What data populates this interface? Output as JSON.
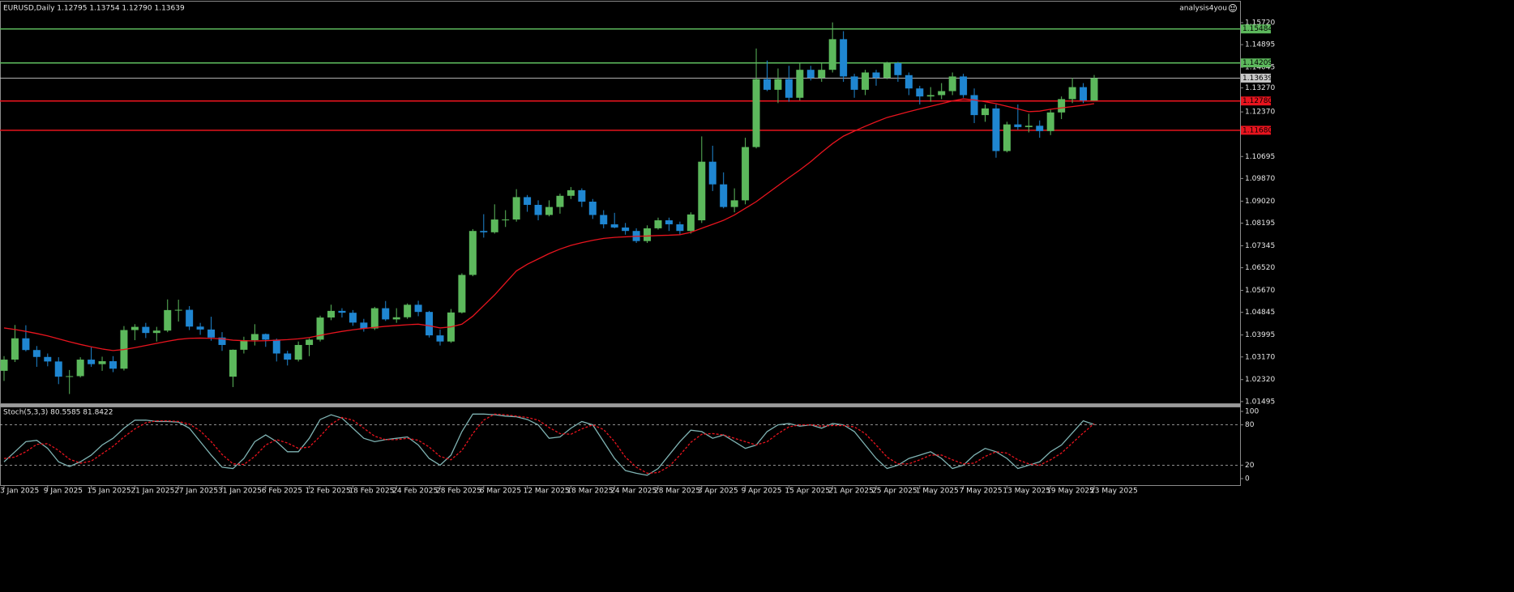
{
  "chart_data": {
    "type": "candlestick",
    "title": "EURUSD,Daily  1.12795 1.13754 1.12790 1.13639",
    "brand": "analysis4you",
    "categories": [
      "3 Jan 2025",
      null,
      null,
      null,
      "9 Jan 2025",
      null,
      null,
      null,
      "15 Jan 2025",
      null,
      null,
      null,
      "21 Jan 2025",
      null,
      null,
      null,
      "27 Jan 2025",
      null,
      null,
      null,
      "31 Jan 2025",
      null,
      null,
      null,
      "6 Feb 2025",
      null,
      null,
      null,
      "12 Feb 2025",
      null,
      null,
      null,
      "18 Feb 2025",
      null,
      null,
      null,
      "24 Feb 2025",
      null,
      null,
      null,
      "28 Feb 2025",
      null,
      null,
      null,
      "6 Mar 2025",
      null,
      null,
      null,
      "12 Mar 2025",
      null,
      null,
      null,
      "18 Mar 2025",
      null,
      null,
      null,
      "24 Mar 2025",
      null,
      null,
      null,
      "28 Mar 2025",
      null,
      null,
      null,
      "3 Apr 2025",
      null,
      null,
      null,
      "9 Apr 2025",
      null,
      null,
      null,
      "15 Apr 2025",
      null,
      null,
      null,
      "21 Apr 2025",
      null,
      null,
      null,
      "25 Apr 2025",
      null,
      null,
      null,
      "1 May 2025",
      null,
      null,
      null,
      "7 May 2025",
      null,
      null,
      null,
      "13 May 2025",
      null,
      null,
      null,
      "19 May 2025",
      null,
      null,
      null,
      "23 May 2025"
    ],
    "open": [
      1.0265,
      1.0307,
      1.0387,
      1.0343,
      1.0317,
      1.03,
      1.0243,
      1.0245,
      1.0307,
      1.029,
      1.0301,
      1.0273,
      1.0418,
      1.043,
      1.0407,
      1.0416,
      1.0493,
      1.0494,
      1.0431,
      1.042,
      1.039,
      1.0243,
      1.0344,
      1.038,
      1.0403,
      1.0382,
      1.033,
      1.0307,
      1.0362,
      1.0382,
      1.0465,
      1.049,
      1.0483,
      1.0446,
      1.0424,
      1.05,
      1.0458,
      1.0466,
      1.0513,
      1.0486,
      1.0398,
      1.0375,
      1.0484,
      1.0625,
      1.079,
      1.0785,
      1.0833,
      1.0833,
      1.0917,
      1.0888,
      1.085,
      1.088,
      1.0922,
      1.0943,
      1.09,
      1.085,
      1.0815,
      1.0803,
      1.079,
      1.0752,
      1.08,
      1.083,
      1.0815,
      1.079,
      1.083,
      1.105,
      1.0965,
      1.088,
      1.0905,
      1.1105,
      1.136,
      1.132,
      1.136,
      1.129,
      1.1395,
      1.1365,
      1.1395,
      1.151,
      1.137,
      1.132,
      1.1385,
      1.1365,
      1.142,
      1.1375,
      1.1325,
      1.1295,
      1.13,
      1.1315,
      1.137,
      1.13,
      1.1225,
      1.125,
      1.109,
      1.119,
      1.118,
      1.1185,
      1.1165,
      1.1235,
      1.1285,
      1.133,
      1.12795
    ],
    "high": [
      1.032,
      1.0437,
      1.0436,
      1.0358,
      1.033,
      1.0316,
      1.0268,
      1.0316,
      1.0353,
      1.0318,
      1.032,
      1.0433,
      1.044,
      1.0445,
      1.043,
      1.0533,
      1.0532,
      1.0508,
      1.0445,
      1.0468,
      1.041,
      1.0345,
      1.0393,
      1.044,
      1.0405,
      1.0386,
      1.034,
      1.0375,
      1.0387,
      1.0472,
      1.0513,
      1.05,
      1.0493,
      1.046,
      1.0505,
      1.0527,
      1.05,
      1.0518,
      1.0528,
      1.049,
      1.042,
      1.0497,
      1.0631,
      1.0797,
      1.0853,
      1.089,
      1.0868,
      1.0947,
      1.0925,
      1.0905,
      1.0905,
      1.093,
      1.0955,
      1.095,
      1.091,
      1.0868,
      1.0858,
      1.082,
      1.08,
      1.0811,
      1.084,
      1.084,
      1.0825,
      1.086,
      1.1145,
      1.111,
      1.101,
      1.095,
      1.114,
      1.1475,
      1.143,
      1.14,
      1.141,
      1.142,
      1.141,
      1.142,
      1.1573,
      1.154,
      1.138,
      1.1395,
      1.1395,
      1.1425,
      1.1425,
      1.1385,
      1.1335,
      1.133,
      1.1345,
      1.1385,
      1.138,
      1.1325,
      1.1265,
      1.1265,
      1.12,
      1.1265,
      1.123,
      1.1205,
      1.1245,
      1.1295,
      1.1365,
      1.1345,
      1.13754
    ],
    "low": [
      1.0227,
      1.0298,
      1.0338,
      1.028,
      1.0282,
      1.0215,
      1.0178,
      1.024,
      1.028,
      1.0265,
      1.026,
      1.0266,
      1.038,
      1.0388,
      1.0375,
      1.041,
      1.045,
      1.0418,
      1.04,
      1.0378,
      1.034,
      1.0204,
      1.033,
      1.036,
      1.0355,
      1.03,
      1.0285,
      1.03,
      1.032,
      1.0375,
      1.0455,
      1.0465,
      1.0434,
      1.0412,
      1.0418,
      1.0452,
      1.0445,
      1.046,
      1.047,
      1.039,
      1.036,
      1.037,
      1.048,
      1.062,
      1.0765,
      1.078,
      1.0805,
      1.0825,
      1.0862,
      1.083,
      1.0845,
      1.0855,
      1.091,
      1.088,
      1.0835,
      1.08,
      1.08,
      1.0776,
      1.0745,
      1.0745,
      1.0795,
      1.079,
      1.0777,
      1.078,
      1.082,
      1.094,
      1.0875,
      1.086,
      1.089,
      1.11,
      1.1315,
      1.127,
      1.1275,
      1.128,
      1.1355,
      1.135,
      1.1385,
      1.135,
      1.129,
      1.13,
      1.1335,
      1.136,
      1.135,
      1.13,
      1.1265,
      1.1275,
      1.1285,
      1.13,
      1.129,
      1.1195,
      1.12,
      1.1065,
      1.1085,
      1.117,
      1.116,
      1.114,
      1.115,
      1.121,
      1.127,
      1.127,
      1.1279
    ],
    "close": [
      1.0307,
      1.0387,
      1.0343,
      1.0317,
      1.03,
      1.0243,
      1.0245,
      1.0307,
      1.029,
      1.0301,
      1.0273,
      1.0418,
      1.043,
      1.0407,
      1.0416,
      1.0493,
      1.0494,
      1.0431,
      1.042,
      1.039,
      1.0362,
      1.0344,
      1.038,
      1.0403,
      1.0382,
      1.033,
      1.0307,
      1.0362,
      1.0382,
      1.0465,
      1.049,
      1.0483,
      1.0446,
      1.0424,
      1.05,
      1.0458,
      1.0466,
      1.0513,
      1.0486,
      1.0398,
      1.0375,
      1.0484,
      1.0625,
      1.079,
      1.0785,
      1.0833,
      1.0833,
      1.0917,
      1.0888,
      1.085,
      1.088,
      1.0922,
      1.0943,
      1.09,
      1.085,
      1.0815,
      1.0803,
      1.079,
      1.0752,
      1.08,
      1.083,
      1.0815,
      1.079,
      1.0852,
      1.105,
      1.0965,
      1.088,
      1.0905,
      1.1105,
      1.136,
      1.132,
      1.136,
      1.129,
      1.1395,
      1.1365,
      1.1395,
      1.151,
      1.137,
      1.132,
      1.1385,
      1.1365,
      1.142,
      1.1375,
      1.1325,
      1.1295,
      1.13,
      1.1315,
      1.137,
      1.13,
      1.1225,
      1.125,
      1.109,
      1.119,
      1.118,
      1.1185,
      1.1165,
      1.1235,
      1.1285,
      1.133,
      1.128,
      1.13639
    ],
    "up_color": "#5cb85c",
    "down_color": "#1f86d1",
    "ma": {
      "color": "#e8141e",
      "values": [
        1.0426,
        1.042,
        1.0413,
        1.0405,
        1.0396,
        1.0385,
        1.0374,
        1.0364,
        1.0355,
        1.0347,
        1.0341,
        1.0345,
        1.0352,
        1.036,
        1.0368,
        1.0376,
        1.0383,
        1.0387,
        1.0388,
        1.0387,
        1.0385,
        1.038,
        1.0378,
        1.0377,
        1.0378,
        1.038,
        1.0382,
        1.0385,
        1.039,
        1.0398,
        1.0406,
        1.0413,
        1.0419,
        1.0424,
        1.0428,
        1.0432,
        1.0435,
        1.0438,
        1.044,
        1.0434,
        1.0426,
        1.043,
        1.044,
        1.047,
        1.051,
        1.055,
        1.0595,
        1.064,
        1.0665,
        1.0685,
        1.0705,
        1.0722,
        1.0736,
        1.0746,
        1.0755,
        1.0762,
        1.0766,
        1.0768,
        1.077,
        1.0771,
        1.0773,
        1.0774,
        1.0776,
        1.0785,
        1.08,
        1.0815,
        1.083,
        1.085,
        1.0875,
        1.09,
        1.093,
        1.096,
        1.099,
        1.1019,
        1.105,
        1.1085,
        1.1118,
        1.1146,
        1.1165,
        1.1183,
        1.12,
        1.1216,
        1.1227,
        1.1238,
        1.1248,
        1.1258,
        1.1268,
        1.1278,
        1.1286,
        1.1282,
        1.1275,
        1.1268,
        1.1258,
        1.1248,
        1.1238,
        1.124,
        1.1247,
        1.1252,
        1.1257,
        1.1262,
        1.1268
      ]
    },
    "levels": [
      {
        "value": 1.15484,
        "label": "1.15484",
        "color": "#5cb85c"
      },
      {
        "value": 1.14209,
        "label": "1.14209",
        "color": "#5cb85c"
      },
      {
        "value": 1.13639,
        "label": "1.13639",
        "color": "#c8c8c8"
      },
      {
        "value": 1.1278,
        "label": "1.12780",
        "color": "#e8141e"
      },
      {
        "value": 1.1168,
        "label": "1.11680",
        "color": "#e8141e"
      }
    ],
    "ylim": [
      1.0143,
      1.1651
    ],
    "yticks": [
      {
        "value": 1.1572,
        "label": "1.15720"
      },
      {
        "value": 1.14895,
        "label": "1.14895"
      },
      {
        "value": 1.14045,
        "label": "1.14045"
      },
      {
        "value": 1.1327,
        "label": "1.13270"
      },
      {
        "value": 1.1237,
        "label": "1.12370"
      },
      {
        "value": 1.10695,
        "label": "1.10695"
      },
      {
        "value": 1.0987,
        "label": "1.09870"
      },
      {
        "value": 1.0902,
        "label": "1.09020"
      },
      {
        "value": 1.08195,
        "label": "1.08195"
      },
      {
        "value": 1.07345,
        "label": "1.07345"
      },
      {
        "value": 1.0652,
        "label": "1.06520"
      },
      {
        "value": 1.0567,
        "label": "1.05670"
      },
      {
        "value": 1.04845,
        "label": "1.04845"
      },
      {
        "value": 1.03995,
        "label": "1.03995"
      },
      {
        "value": 1.0317,
        "label": "1.03170"
      },
      {
        "value": 1.0232,
        "label": "1.02320"
      },
      {
        "value": 1.01495,
        "label": "1.01495"
      }
    ],
    "indicator": {
      "type": "stochastic",
      "title": "Stoch(5,3,3) 80.5585 81.8422",
      "ylim": [
        0,
        100
      ],
      "yticks": [
        100,
        80,
        20,
        0
      ],
      "levels": [
        80,
        20
      ],
      "series": [
        {
          "color": "#7fb3b3",
          "dash": false,
          "values": [
            25,
            40,
            55,
            57,
            45,
            25,
            18,
            25,
            35,
            50,
            60,
            75,
            87,
            87,
            85,
            85,
            84,
            75,
            55,
            35,
            17,
            15,
            30,
            55,
            65,
            55,
            40,
            40,
            60,
            88,
            95,
            90,
            75,
            60,
            55,
            58,
            60,
            62,
            50,
            30,
            20,
            35,
            70,
            96,
            96,
            95,
            93,
            92,
            88,
            80,
            60,
            62,
            75,
            85,
            80,
            55,
            30,
            12,
            8,
            5,
            15,
            35,
            55,
            72,
            70,
            60,
            65,
            55,
            45,
            50,
            70,
            80,
            82,
            78,
            80,
            75,
            82,
            80,
            70,
            50,
            30,
            15,
            20,
            30,
            35,
            40,
            30,
            15,
            20,
            35,
            45,
            40,
            30,
            15,
            20,
            25,
            40,
            50,
            68,
            86,
            80.5585
          ]
        },
        {
          "color": "#e8141e",
          "dash": true,
          "values": [
            30,
            32,
            40,
            51,
            52,
            42,
            29,
            23,
            26,
            37,
            48,
            62,
            74,
            83,
            86,
            86,
            85,
            81,
            71,
            55,
            36,
            22,
            21,
            33,
            50,
            58,
            53,
            45,
            47,
            63,
            81,
            91,
            87,
            75,
            63,
            58,
            58,
            60,
            57,
            47,
            33,
            28,
            42,
            67,
            87,
            96,
            95,
            93,
            91,
            87,
            76,
            67,
            66,
            74,
            80,
            73,
            55,
            32,
            17,
            8,
            9,
            18,
            35,
            54,
            66,
            67,
            65,
            60,
            55,
            50,
            55,
            67,
            77,
            80,
            80,
            78,
            79,
            79,
            77,
            67,
            50,
            32,
            22,
            22,
            28,
            35,
            35,
            28,
            22,
            23,
            33,
            40,
            38,
            28,
            22,
            20,
            28,
            38,
            53,
            68,
            81.8422
          ]
        }
      ]
    }
  }
}
